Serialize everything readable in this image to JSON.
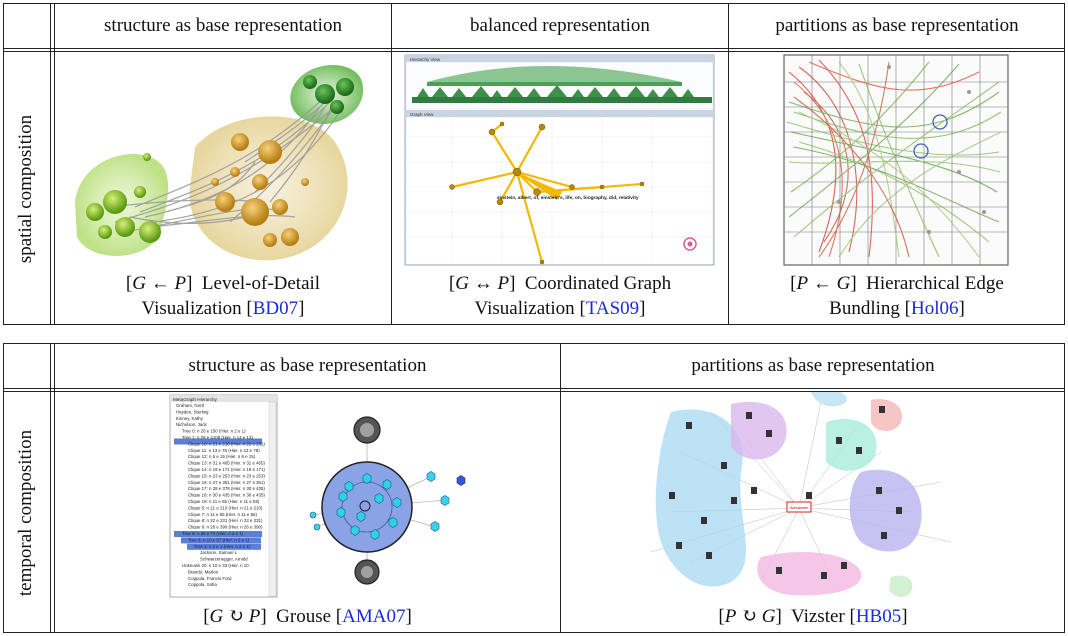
{
  "table1": {
    "row_label": "spatial composition",
    "columns": [
      "structure as base representation",
      "balanced representation",
      "partitions as base representation"
    ],
    "cells": [
      {
        "notation_open": "[",
        "notation_a": "G",
        "notation_op": " ← ",
        "notation_b": "P",
        "notation_close": "]",
        "title_line1": "Level-of-Detail",
        "title_line2": "Visualization",
        "cite": "BD07"
      },
      {
        "notation_open": "[",
        "notation_a": "G",
        "notation_op": " ↔ ",
        "notation_b": "P",
        "notation_close": "]",
        "title_line1": "Coordinated Graph",
        "title_line2": "Visualization",
        "cite": "TAS09"
      },
      {
        "notation_open": "[",
        "notation_a": "P",
        "notation_op": " ← ",
        "notation_b": "G",
        "notation_close": "]",
        "title_line1": "Hierarchical Edge",
        "title_line2": "Bundling",
        "cite": "Hol06"
      }
    ]
  },
  "table2": {
    "row_label": "temporal composition",
    "columns": [
      "structure as base representation",
      "partitions as base representation"
    ],
    "cells": [
      {
        "notation_open": "[",
        "notation_a": "G",
        "notation_op": " ↻ ",
        "notation_b": "P",
        "notation_close": "]",
        "title_line1": "Grouse",
        "cite": "AMA07"
      },
      {
        "notation_open": "[",
        "notation_a": "P",
        "notation_op": " ↻ ",
        "notation_b": "G",
        "notation_close": "]",
        "title_line1": "Vizster",
        "cite": "HB05"
      }
    ]
  },
  "thumb": {
    "tas_top_title": "Hierarchy View",
    "tas_bottom_title": "Graph View",
    "tas_main_label": "einstein, albert, of, einstein's, life, on, biography, did, relativity",
    "grouse_title": "MetaGraph Hierarchy",
    "grouse_items": [
      "Graham, Gertl",
      "Hayden, Sterling",
      "Kinney, Kathy",
      "Nicholson, Jack",
      "Tree 0: n 26 e 150 (Hier. n 2 e 1)",
      "Tree 1: n 28 e 4108 (Hier. n 14 e 13)",
      "Clique 10: n 21 e 210 (Hier. n 22 e 231)",
      "Clique 11: n 13 e 78 (Hier. n 13 e 78)",
      "Clique 12: n 6 e 15 (Hier. n 6 e 15)",
      "Clique 13: n 31 e 465 (Hier. n 31 e 465)",
      "Clique 14: n 19 e 171 (Hier. n 19 e 171)",
      "Clique 15: n 23 e 253 (Hier. n 23 e 253)",
      "Clique 16: n 27 e 351 (Hier. n 27 e 351)",
      "Clique 17: n 28 e 378 (Hier. n 30 e 435)",
      "Clique 18: n 30 e 435 (Hier. n 30 e 435)",
      "Clique 19: n 11 e 55 (Hier. n 11 e 55)",
      "Clique 5: n 21 e 210 (Hier. n 21 e 210)",
      "Clique 7: n 11 e 55 (Hier. n 11 e 55)",
      "Clique 8: n 22 e 231 (Hier. n 22 e 231)",
      "Clique 9: n 26 e 390 (Hier. n 26 e 390)",
      "Tree 8: n 28 e 74 (Hier. n 2 e 1)",
      "Tree 6: n 10 e 57 (Hier. n 2 e 1)",
      "Tree 2: n 2 e 1 (Hier. n 2 e 1)",
      "Jackson, Samuel L",
      "Schwarzenegger, Arnold",
      "Unknown 20: n 10 e 33 (Hier. n 10",
      "Brando, Marlon",
      "Coppola, Francis Ford",
      "Coppola, Sofia"
    ],
    "vizster_center": "Alexander"
  }
}
